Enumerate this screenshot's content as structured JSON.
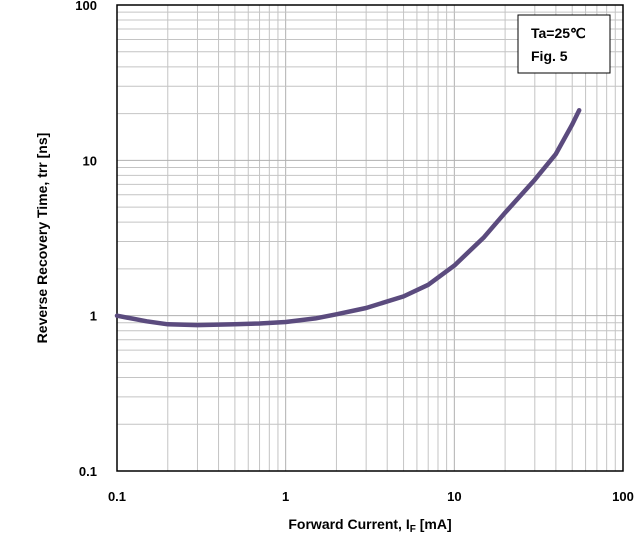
{
  "chart_data": {
    "type": "line",
    "x_scale": "log",
    "y_scale": "log",
    "xlim": [
      0.1,
      100
    ],
    "ylim": [
      0.1,
      100
    ],
    "grid": true,
    "x_ticks": [
      "0.1",
      "1",
      "10",
      "100"
    ],
    "y_ticks": [
      "0.1",
      "1",
      "10",
      "100"
    ],
    "xlabel": {
      "main": "Forward Current, I",
      "sub": "F",
      "unit": " [mA]"
    },
    "ylabel": "Reverse Recovery Time, trr [ns]",
    "annotations": [
      "Ta=25℃",
      "Fig. 5"
    ],
    "series": [
      {
        "color": "#5b4b7e",
        "x": [
          0.1,
          0.15,
          0.2,
          0.3,
          0.5,
          0.7,
          1.0,
          1.5,
          2.0,
          3.0,
          5.0,
          7.0,
          10.0,
          15.0,
          20.0,
          30.0,
          40.0,
          50.0,
          55.0
        ],
        "y": [
          1.0,
          0.92,
          0.88,
          0.87,
          0.88,
          0.89,
          0.91,
          0.96,
          1.02,
          1.12,
          1.33,
          1.58,
          2.1,
          3.2,
          4.6,
          7.5,
          11.0,
          17.0,
          21.0
        ]
      }
    ]
  }
}
